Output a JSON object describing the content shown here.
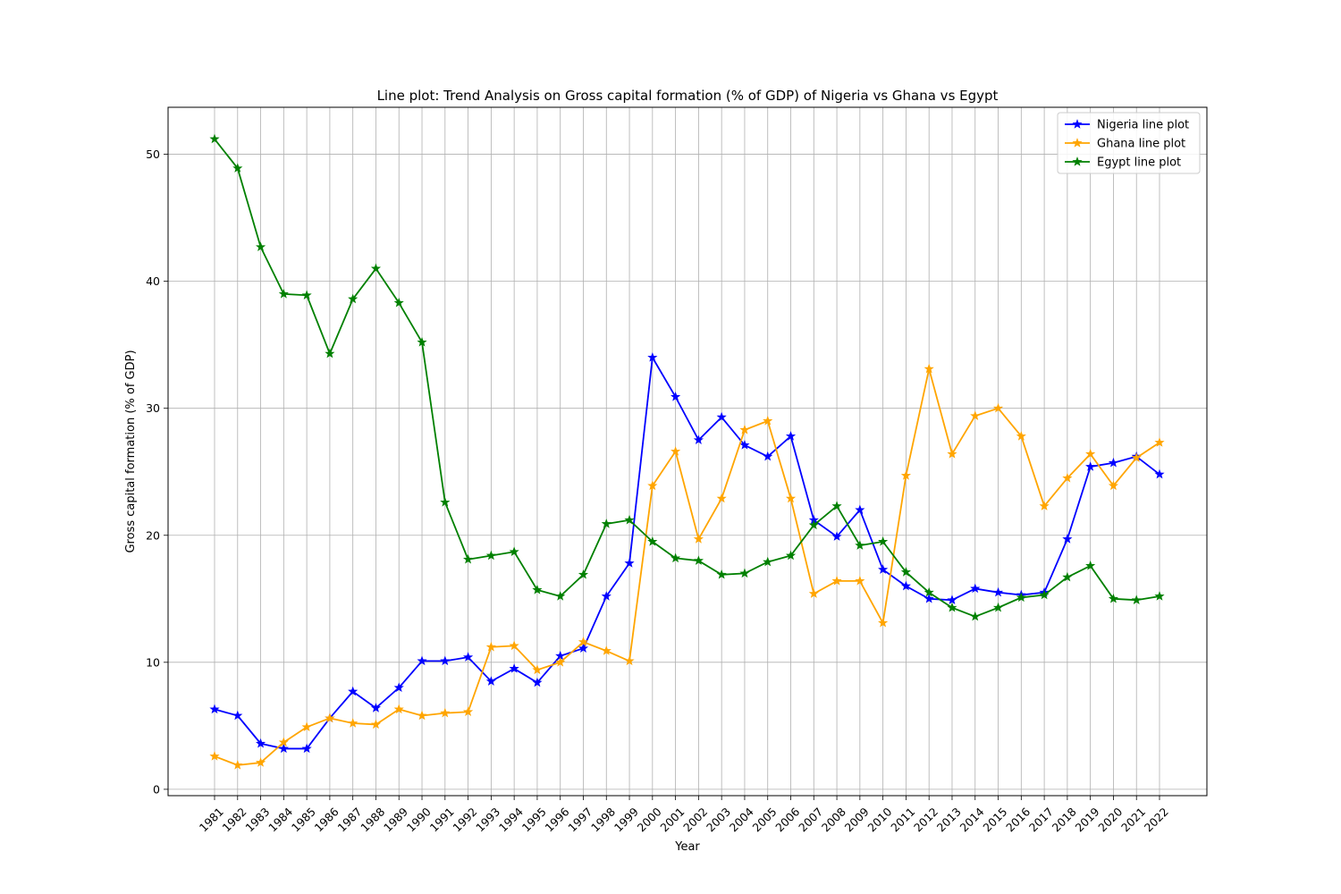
{
  "chart_data": {
    "type": "line",
    "title": "Line plot: Trend Analysis on Gross capital formation (% of GDP) of Nigeria vs Ghana vs Egypt",
    "xlabel": "Year",
    "ylabel": "Gross capital formation (% of GDP)",
    "ylim": [
      -0.5,
      53.7
    ],
    "yticks": [
      0,
      10,
      20,
      30,
      40,
      50
    ],
    "grid": true,
    "legend_position": "top-right",
    "marker": "star",
    "categories": [
      "1981",
      "1982",
      "1983",
      "1984",
      "1985",
      "1986",
      "1987",
      "1988",
      "1989",
      "1990",
      "1991",
      "1992",
      "1993",
      "1994",
      "1995",
      "1996",
      "1997",
      "1998",
      "1999",
      "2000",
      "2001",
      "2002",
      "2003",
      "2004",
      "2005",
      "2006",
      "2007",
      "2008",
      "2009",
      "2010",
      "2011",
      "2012",
      "2013",
      "2014",
      "2015",
      "2016",
      "2017",
      "2018",
      "2019",
      "2020",
      "2021",
      "2022"
    ],
    "series": [
      {
        "name": "Nigeria line plot",
        "color": "#0000ff",
        "values": [
          6.3,
          5.8,
          3.6,
          3.2,
          3.2,
          5.6,
          7.7,
          6.4,
          8.0,
          10.1,
          10.1,
          10.4,
          8.5,
          9.5,
          8.4,
          10.5,
          11.1,
          15.2,
          17.8,
          34.0,
          30.9,
          27.5,
          29.3,
          27.1,
          26.2,
          27.8,
          21.2,
          19.9,
          22.0,
          17.3,
          16.0,
          15.0,
          14.9,
          15.8,
          15.5,
          15.3,
          15.5,
          19.7,
          25.4,
          25.7,
          26.2,
          24.8
        ]
      },
      {
        "name": "Ghana line plot",
        "color": "#ffa500",
        "values": [
          2.6,
          1.9,
          2.1,
          3.7,
          4.9,
          5.6,
          5.2,
          5.1,
          6.3,
          5.8,
          6.0,
          6.1,
          11.2,
          11.3,
          9.4,
          10.0,
          11.6,
          10.9,
          10.1,
          23.9,
          26.6,
          19.7,
          22.9,
          28.3,
          29.0,
          22.9,
          15.4,
          16.4,
          16.4,
          13.1,
          24.7,
          33.1,
          26.4,
          29.4,
          30.0,
          27.8,
          22.3,
          24.5,
          26.4,
          23.9,
          26.1,
          27.3
        ]
      },
      {
        "name": "Egypt line plot",
        "color": "#008000",
        "values": [
          51.2,
          48.9,
          42.7,
          39.0,
          38.9,
          34.3,
          38.6,
          41.0,
          38.3,
          35.2,
          22.6,
          18.1,
          18.4,
          18.7,
          15.7,
          15.2,
          16.9,
          20.9,
          21.2,
          19.5,
          18.2,
          18.0,
          16.9,
          17.0,
          17.9,
          18.4,
          20.8,
          22.3,
          19.2,
          19.5,
          17.1,
          15.5,
          14.3,
          13.6,
          14.3,
          15.1,
          15.3,
          16.7,
          17.6,
          15.0,
          14.9,
          15.2
        ]
      }
    ]
  }
}
